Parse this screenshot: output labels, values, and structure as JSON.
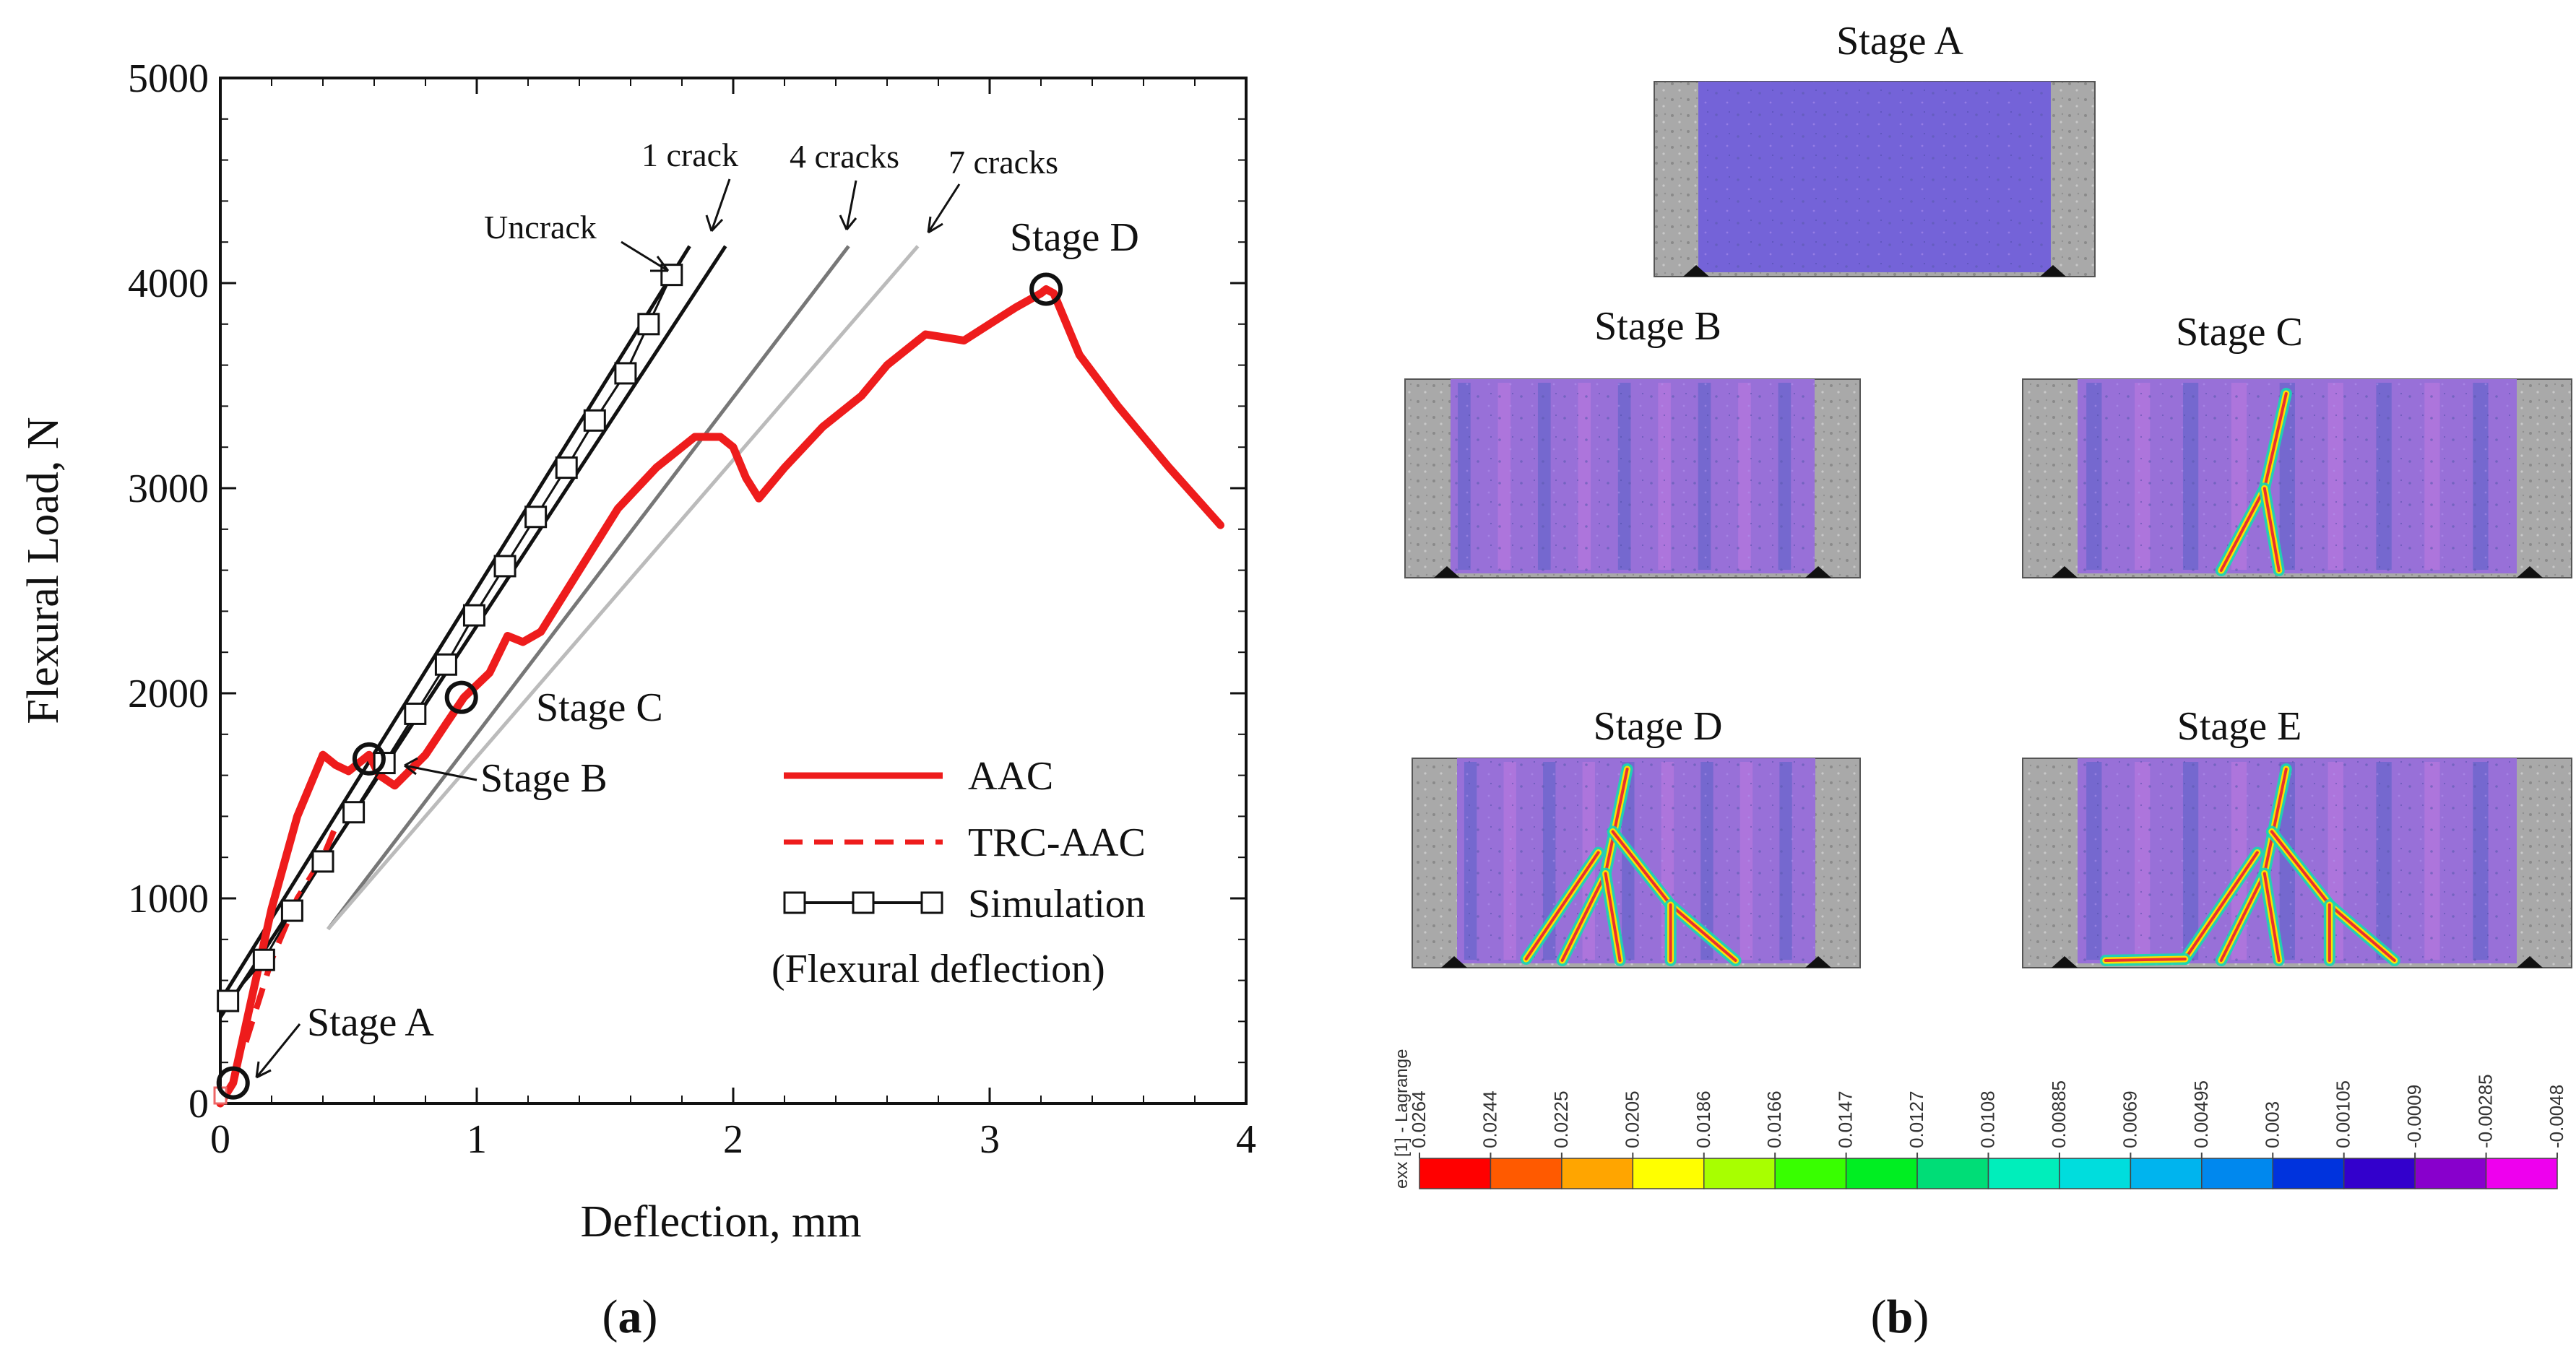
{
  "chart_data": {
    "type": "line",
    "xlabel": "Deflection, mm",
    "ylabel": "Flexural Load, N",
    "xlim": [
      0,
      4
    ],
    "ylim": [
      0,
      5000
    ],
    "xticks": [
      "0",
      "1",
      "2",
      "3",
      "4"
    ],
    "yticks": [
      "0",
      "1000",
      "2000",
      "3000",
      "4000",
      "5000"
    ],
    "legend": {
      "items": [
        {
          "name": "AAC",
          "color": "#ee1c1c",
          "style": "solid"
        },
        {
          "name": "TRC-AAC",
          "color": "#ee1c1c",
          "style": "dashed"
        },
        {
          "name": "Simulation",
          "color": "#111111",
          "style": "line-square"
        }
      ],
      "note": "(Flexural deflection)",
      "position": "bottom-right"
    },
    "series": [
      {
        "name": "AAC",
        "x": [
          0,
          0.05,
          0.12,
          0.2,
          0.3,
          0.4,
          0.45,
          0.5,
          0.58,
          0.62,
          0.68,
          0.72,
          0.8,
          0.88,
          0.95,
          1.05,
          1.12,
          1.18,
          1.25,
          1.4,
          1.55,
          1.7,
          1.85,
          1.95,
          2.0,
          2.05,
          2.1,
          2.2,
          2.35,
          2.5,
          2.6,
          2.7,
          2.75,
          2.8,
          2.9,
          3.0,
          3.1,
          3.2,
          3.22,
          3.25,
          3.35,
          3.5,
          3.7,
          3.9
        ],
        "y": [
          0,
          100,
          500,
          950,
          1400,
          1700,
          1650,
          1620,
          1700,
          1600,
          1550,
          1600,
          1700,
          1850,
          1980,
          2100,
          2280,
          2250,
          2300,
          2600,
          2900,
          3100,
          3250,
          3250,
          3200,
          3050,
          2950,
          3100,
          3300,
          3450,
          3600,
          3700,
          3750,
          3740,
          3720,
          3800,
          3880,
          3950,
          3970,
          3950,
          3650,
          3400,
          3100,
          2820
        ]
      },
      {
        "name": "TRC-AAC",
        "x": [
          0.1,
          0.2,
          0.3,
          0.4,
          0.45
        ],
        "y": [
          300,
          700,
          1000,
          1200,
          1350
        ]
      },
      {
        "name": "Simulation",
        "x": [
          0.03,
          0.17,
          0.28,
          0.4,
          0.52,
          0.64,
          0.76,
          0.88,
          0.99,
          1.11,
          1.23,
          1.35,
          1.46,
          1.58,
          1.67,
          1.76
        ],
        "y": [
          500,
          700,
          940,
          1180,
          1420,
          1660,
          1900,
          2140,
          2380,
          2620,
          2860,
          3100,
          3330,
          3560,
          3800,
          4040
        ]
      }
    ],
    "reference_lines": [
      {
        "name": "Uncrack",
        "x": [
          0,
          1.83
        ],
        "y": [
          500,
          4180
        ],
        "color": "#111111"
      },
      {
        "name": "1 crack",
        "x": [
          0,
          1.97
        ],
        "y": [
          420,
          4180
        ],
        "color": "#111111"
      },
      {
        "name": "4 cracks",
        "x": [
          0.42,
          2.45
        ],
        "y": [
          850,
          4180
        ],
        "color": "#777777"
      },
      {
        "name": "7 cracks",
        "x": [
          0.42,
          2.72
        ],
        "y": [
          850,
          4180
        ],
        "color": "#bbbbbb"
      }
    ],
    "stage_markers": [
      {
        "name": "Stage A",
        "x": 0.05,
        "y": 100
      },
      {
        "name": "Stage B",
        "x": 0.58,
        "y": 1680
      },
      {
        "name": "Stage C",
        "x": 0.94,
        "y": 1980
      },
      {
        "name": "Stage D",
        "x": 3.22,
        "y": 3970
      }
    ],
    "annotations": [
      "Uncrack",
      "1 crack",
      "4 cracks",
      "7 cracks",
      "Stage A",
      "Stage B",
      "Stage C",
      "Stage D"
    ]
  },
  "panel_b": {
    "stages": [
      "Stage A",
      "Stage B",
      "Stage C",
      "Stage D",
      "Stage E"
    ],
    "colorbar": {
      "label": "exx [1] - Lagrange",
      "ticks": [
        "0.0264",
        "0.0244",
        "0.0225",
        "0.0205",
        "0.0186",
        "0.0166",
        "0.0147",
        "0.0127",
        "0.0108",
        "0.00885",
        "0.0069",
        "0.00495",
        "0.003",
        "0.00105",
        "-0.0009",
        "-0.00285",
        "-0.0048"
      ],
      "colors": [
        "#ff0000",
        "#ff5a00",
        "#ffa500",
        "#ffff00",
        "#a8ff00",
        "#38ff00",
        "#00ee22",
        "#00dd77",
        "#00eebb",
        "#00dddd",
        "#00b4ee",
        "#0088ee",
        "#0033dd",
        "#3300cc",
        "#8800cc",
        "#ee00ee"
      ]
    }
  },
  "captions": {
    "a": "a",
    "b": "b"
  }
}
